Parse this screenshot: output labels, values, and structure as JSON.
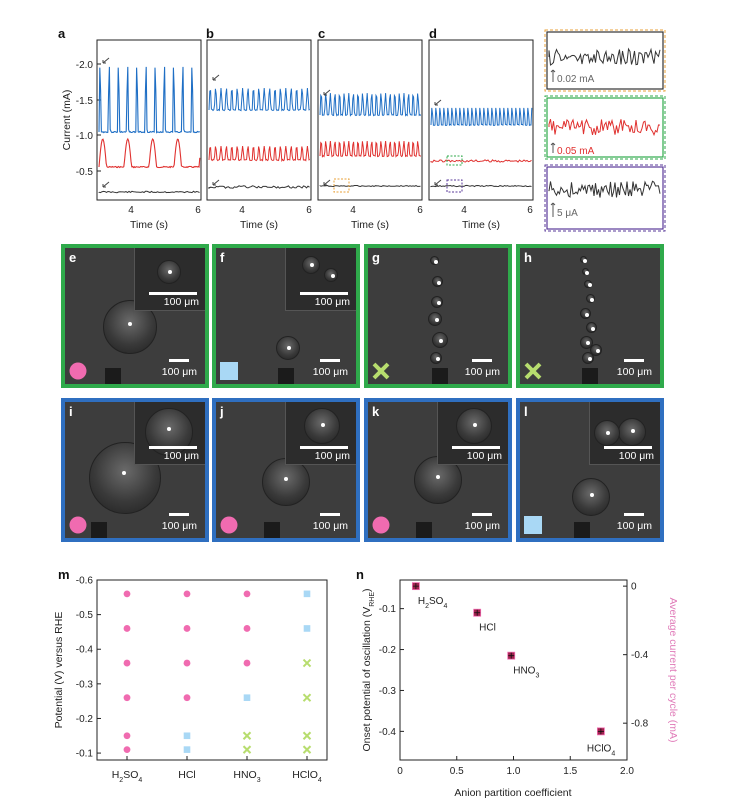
{
  "panels": {
    "a": "a",
    "b": "b",
    "c": "c",
    "d": "d",
    "e": "e",
    "f": "f",
    "g": "g",
    "h": "h",
    "i": "i",
    "j": "j",
    "k": "k",
    "l": "l",
    "m": "m",
    "n": "n"
  },
  "current_plots": {
    "ylabel": "Current (mA)",
    "yticks": [
      "-2.0",
      "-1.5",
      "-1.0",
      "-0.5"
    ],
    "xlabel": "Time (s)",
    "xticks": [
      "4",
      "6"
    ]
  },
  "zoom_insets": {
    "labels": [
      "0.02 mA",
      "0.05 mA",
      "5 μA"
    ],
    "colors": [
      "#e8a23a",
      "#2faa4b",
      "#5a3a9a"
    ]
  },
  "images": {
    "scale_label": "100 μm",
    "tiles": [
      {
        "id": "e",
        "frame": "green",
        "inset": true,
        "symbol": "circle"
      },
      {
        "id": "f",
        "frame": "green",
        "inset": true,
        "symbol": "square"
      },
      {
        "id": "g",
        "frame": "green",
        "inset": false,
        "symbol": "cross"
      },
      {
        "id": "h",
        "frame": "green",
        "inset": false,
        "symbol": "cross"
      },
      {
        "id": "i",
        "frame": "blue",
        "inset": true,
        "symbol": "circle"
      },
      {
        "id": "j",
        "frame": "blue",
        "inset": true,
        "symbol": "circle"
      },
      {
        "id": "k",
        "frame": "blue",
        "inset": true,
        "symbol": "circle"
      },
      {
        "id": "l",
        "frame": "blue",
        "inset": true,
        "symbol": "square"
      }
    ]
  },
  "colors": {
    "blue_trace": "#1f6fc5",
    "red_trace": "#e0312f",
    "black_trace": "#333333",
    "circle": "#f06bb0",
    "square": "#a9d8f5",
    "cross": "#b7dd6e"
  },
  "chart_data": [
    {
      "type": "scatter",
      "panel": "m",
      "ylabel": "Potential (V) versus RHE",
      "categories": [
        "H2SO4",
        "HCl",
        "HNO3",
        "HClO4"
      ],
      "category_labels": [
        {
          "base": "H",
          "sub1": "2",
          "mid": "SO",
          "sub2": "4"
        },
        {
          "base": "HCl"
        },
        {
          "base": "HNO",
          "sub1": "3"
        },
        {
          "base": "HClO",
          "sub1": "4"
        }
      ],
      "yticks": [
        "-0.6",
        "-0.5",
        "-0.4",
        "-0.3",
        "-0.2",
        "-0.1"
      ],
      "ylim": [
        -0.6,
        -0.08
      ],
      "levels": [
        -0.56,
        -0.46,
        -0.36,
        -0.26,
        -0.15,
        -0.11
      ],
      "points": [
        [
          "circle",
          "circle",
          "circle",
          "circle",
          "circle",
          "circle"
        ],
        [
          "circle",
          "circle",
          "circle",
          "circle",
          "square",
          "square"
        ],
        [
          "circle",
          "circle",
          "circle",
          "square",
          "cross",
          "cross"
        ],
        [
          "square",
          "square",
          "cross",
          "cross",
          "cross",
          "cross"
        ]
      ],
      "marker_legend": [
        "circle",
        "square",
        "cross"
      ]
    },
    {
      "type": "scatter",
      "panel": "n",
      "xlabel": "Anion partition coefficient",
      "ylabel": "Onset potential of oscillation (V",
      "ylabel_sub": "RHE",
      "ylabel_end": ")",
      "y2label": "Average current per cycle (mA)",
      "xticks": [
        "0",
        "0.5",
        "1.0",
        "1.5",
        "2.0"
      ],
      "xlim": [
        0,
        2.0
      ],
      "yticks": [
        "-0.1",
        "-0.2",
        "-0.3",
        "-0.4"
      ],
      "ylim": [
        -0.03,
        -0.47
      ],
      "y2ticks": [
        "0",
        "-0.4",
        "-0.8"
      ],
      "points": [
        {
          "x": 0.14,
          "y": -0.045,
          "label": {
            "base": "H",
            "sub1": "2",
            "mid": "SO",
            "sub2": "4"
          }
        },
        {
          "x": 0.68,
          "y": -0.11,
          "label": {
            "base": "HCl"
          }
        },
        {
          "x": 0.98,
          "y": -0.215,
          "label": {
            "base": "HNO",
            "sub1": "3"
          }
        },
        {
          "x": 1.77,
          "y": -0.4,
          "label": {
            "base": "HClO",
            "sub1": "4"
          }
        }
      ]
    }
  ]
}
